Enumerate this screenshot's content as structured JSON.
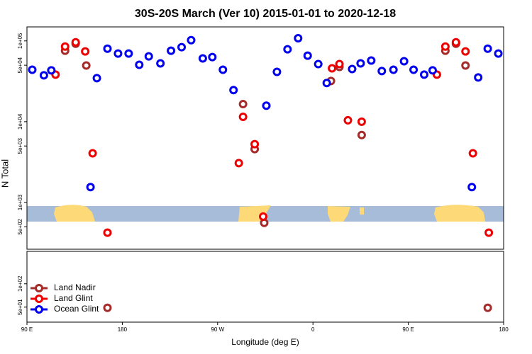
{
  "chart_data": [
    {
      "type": "scatter",
      "title": "30S-20S March (Ver 10)   2015-01-01 to 2020-12-18",
      "ylabel": "N Total",
      "log_y": true,
      "xlim": [
        90,
        540
      ],
      "ylim": [
        264,
        149000
      ],
      "yticks": [
        {
          "value": 500,
          "label": "5e+02"
        },
        {
          "value": 1000,
          "label": "1e+03"
        },
        {
          "value": 5000,
          "label": "5e+03"
        },
        {
          "value": 10000,
          "label": "1e+04"
        },
        {
          "value": 50000,
          "label": "5e+04"
        },
        {
          "value": 100000,
          "label": "1e+05"
        }
      ],
      "series": [
        {
          "color": "#a52a2a",
          "x": [
            126,
            136,
            146,
            294,
            305,
            314,
            377,
            385,
            406,
            485,
            495,
            504
          ],
          "values": [
            75600,
            92300,
            49600,
            16500,
            4580,
            560,
            31900,
            47600,
            6840,
            75600,
            92300,
            49600
          ]
        },
        {
          "color": "#ee0000",
          "x": [
            117,
            126,
            136,
            145,
            152,
            166,
            290,
            294,
            305,
            313,
            378,
            385,
            393,
            406,
            477,
            485,
            495,
            504,
            511,
            526
          ],
          "values": [
            38300,
            85100,
            96100,
            74100,
            4060,
            423,
            3070,
            11500,
            5270,
            670,
            45800,
            51600,
            10400,
            10000,
            38300,
            85100,
            96100,
            74100,
            4060,
            423
          ]
        },
        {
          "color": "#0000ee",
          "x": [
            95,
            106,
            113,
            150,
            156,
            166,
            176,
            186,
            196,
            205,
            216,
            226,
            236,
            245,
            256,
            265,
            275,
            285,
            316,
            326,
            336,
            346,
            355,
            365,
            373,
            397,
            405,
            415,
            425,
            436,
            446,
            455,
            465,
            473,
            510,
            516,
            525,
            535
          ],
          "values": [
            44000,
            37500,
            43200,
            1550,
            34600,
            80200,
            69700,
            69700,
            50600,
            64400,
            52700,
            75600,
            83600,
            102000,
            60700,
            63100,
            44000,
            24600,
            15800,
            41400,
            78700,
            108000,
            65600,
            51600,
            30100,
            44900,
            52700,
            57100,
            42300,
            44000,
            56000,
            44000,
            38300,
            43200,
            1550,
            35300,
            80200,
            69700
          ]
        }
      ]
    },
    {
      "type": "scatter",
      "xlabel": "Longitude (deg E)",
      "log_y": true,
      "legend": "bottom-left",
      "xlim": [
        90,
        540
      ],
      "ylim": [
        32,
        262
      ],
      "xticks": [
        {
          "value": 90,
          "label": "90 E"
        },
        180,
        {
          "value": 270,
          "label": "90 W"
        },
        {
          "value": 360,
          "label": "0"
        },
        {
          "value": 450,
          "label": "90 E"
        },
        {
          "value": 540,
          "label": "180"
        }
      ],
      "yticks": [
        {
          "value": 50,
          "label": "5e+01"
        },
        {
          "value": 100,
          "label": "1e+02"
        }
      ],
      "series": [
        {
          "name": "Land Nadir",
          "color": "#a52a2a",
          "x": [
            166,
            525
          ],
          "values": [
            49,
            49
          ]
        },
        {
          "name": "Land Glint",
          "color": "#ee0000",
          "x": [],
          "values": []
        },
        {
          "name": "Ocean Glint",
          "color": "#0000ee",
          "x": [],
          "values": []
        }
      ]
    }
  ]
}
